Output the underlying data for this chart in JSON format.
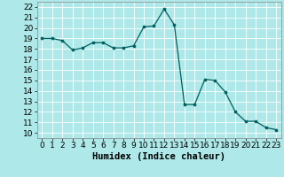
{
  "x": [
    0,
    1,
    2,
    3,
    4,
    5,
    6,
    7,
    8,
    9,
    10,
    11,
    12,
    13,
    14,
    15,
    16,
    17,
    18,
    19,
    20,
    21,
    22,
    23
  ],
  "y": [
    19.0,
    19.0,
    18.8,
    17.9,
    18.1,
    18.6,
    18.6,
    18.1,
    18.1,
    18.3,
    20.1,
    20.2,
    21.8,
    20.3,
    12.7,
    12.7,
    15.1,
    15.0,
    13.9,
    12.0,
    11.1,
    11.1,
    10.5,
    10.3
  ],
  "title": "",
  "xlabel": "Humidex (Indice chaleur)",
  "ylabel": "",
  "ylim": [
    9.5,
    22.5
  ],
  "xlim": [
    -0.5,
    23.5
  ],
  "yticks": [
    10,
    11,
    12,
    13,
    14,
    15,
    16,
    17,
    18,
    19,
    20,
    21,
    22
  ],
  "xticks": [
    0,
    1,
    2,
    3,
    4,
    5,
    6,
    7,
    8,
    9,
    10,
    11,
    12,
    13,
    14,
    15,
    16,
    17,
    18,
    19,
    20,
    21,
    22,
    23
  ],
  "line_color": "#006060",
  "marker_color": "#006060",
  "bg_color": "#aee8e8",
  "grid_color": "#ffffff",
  "xlabel_fontsize": 7.5,
  "tick_fontsize": 6.5
}
